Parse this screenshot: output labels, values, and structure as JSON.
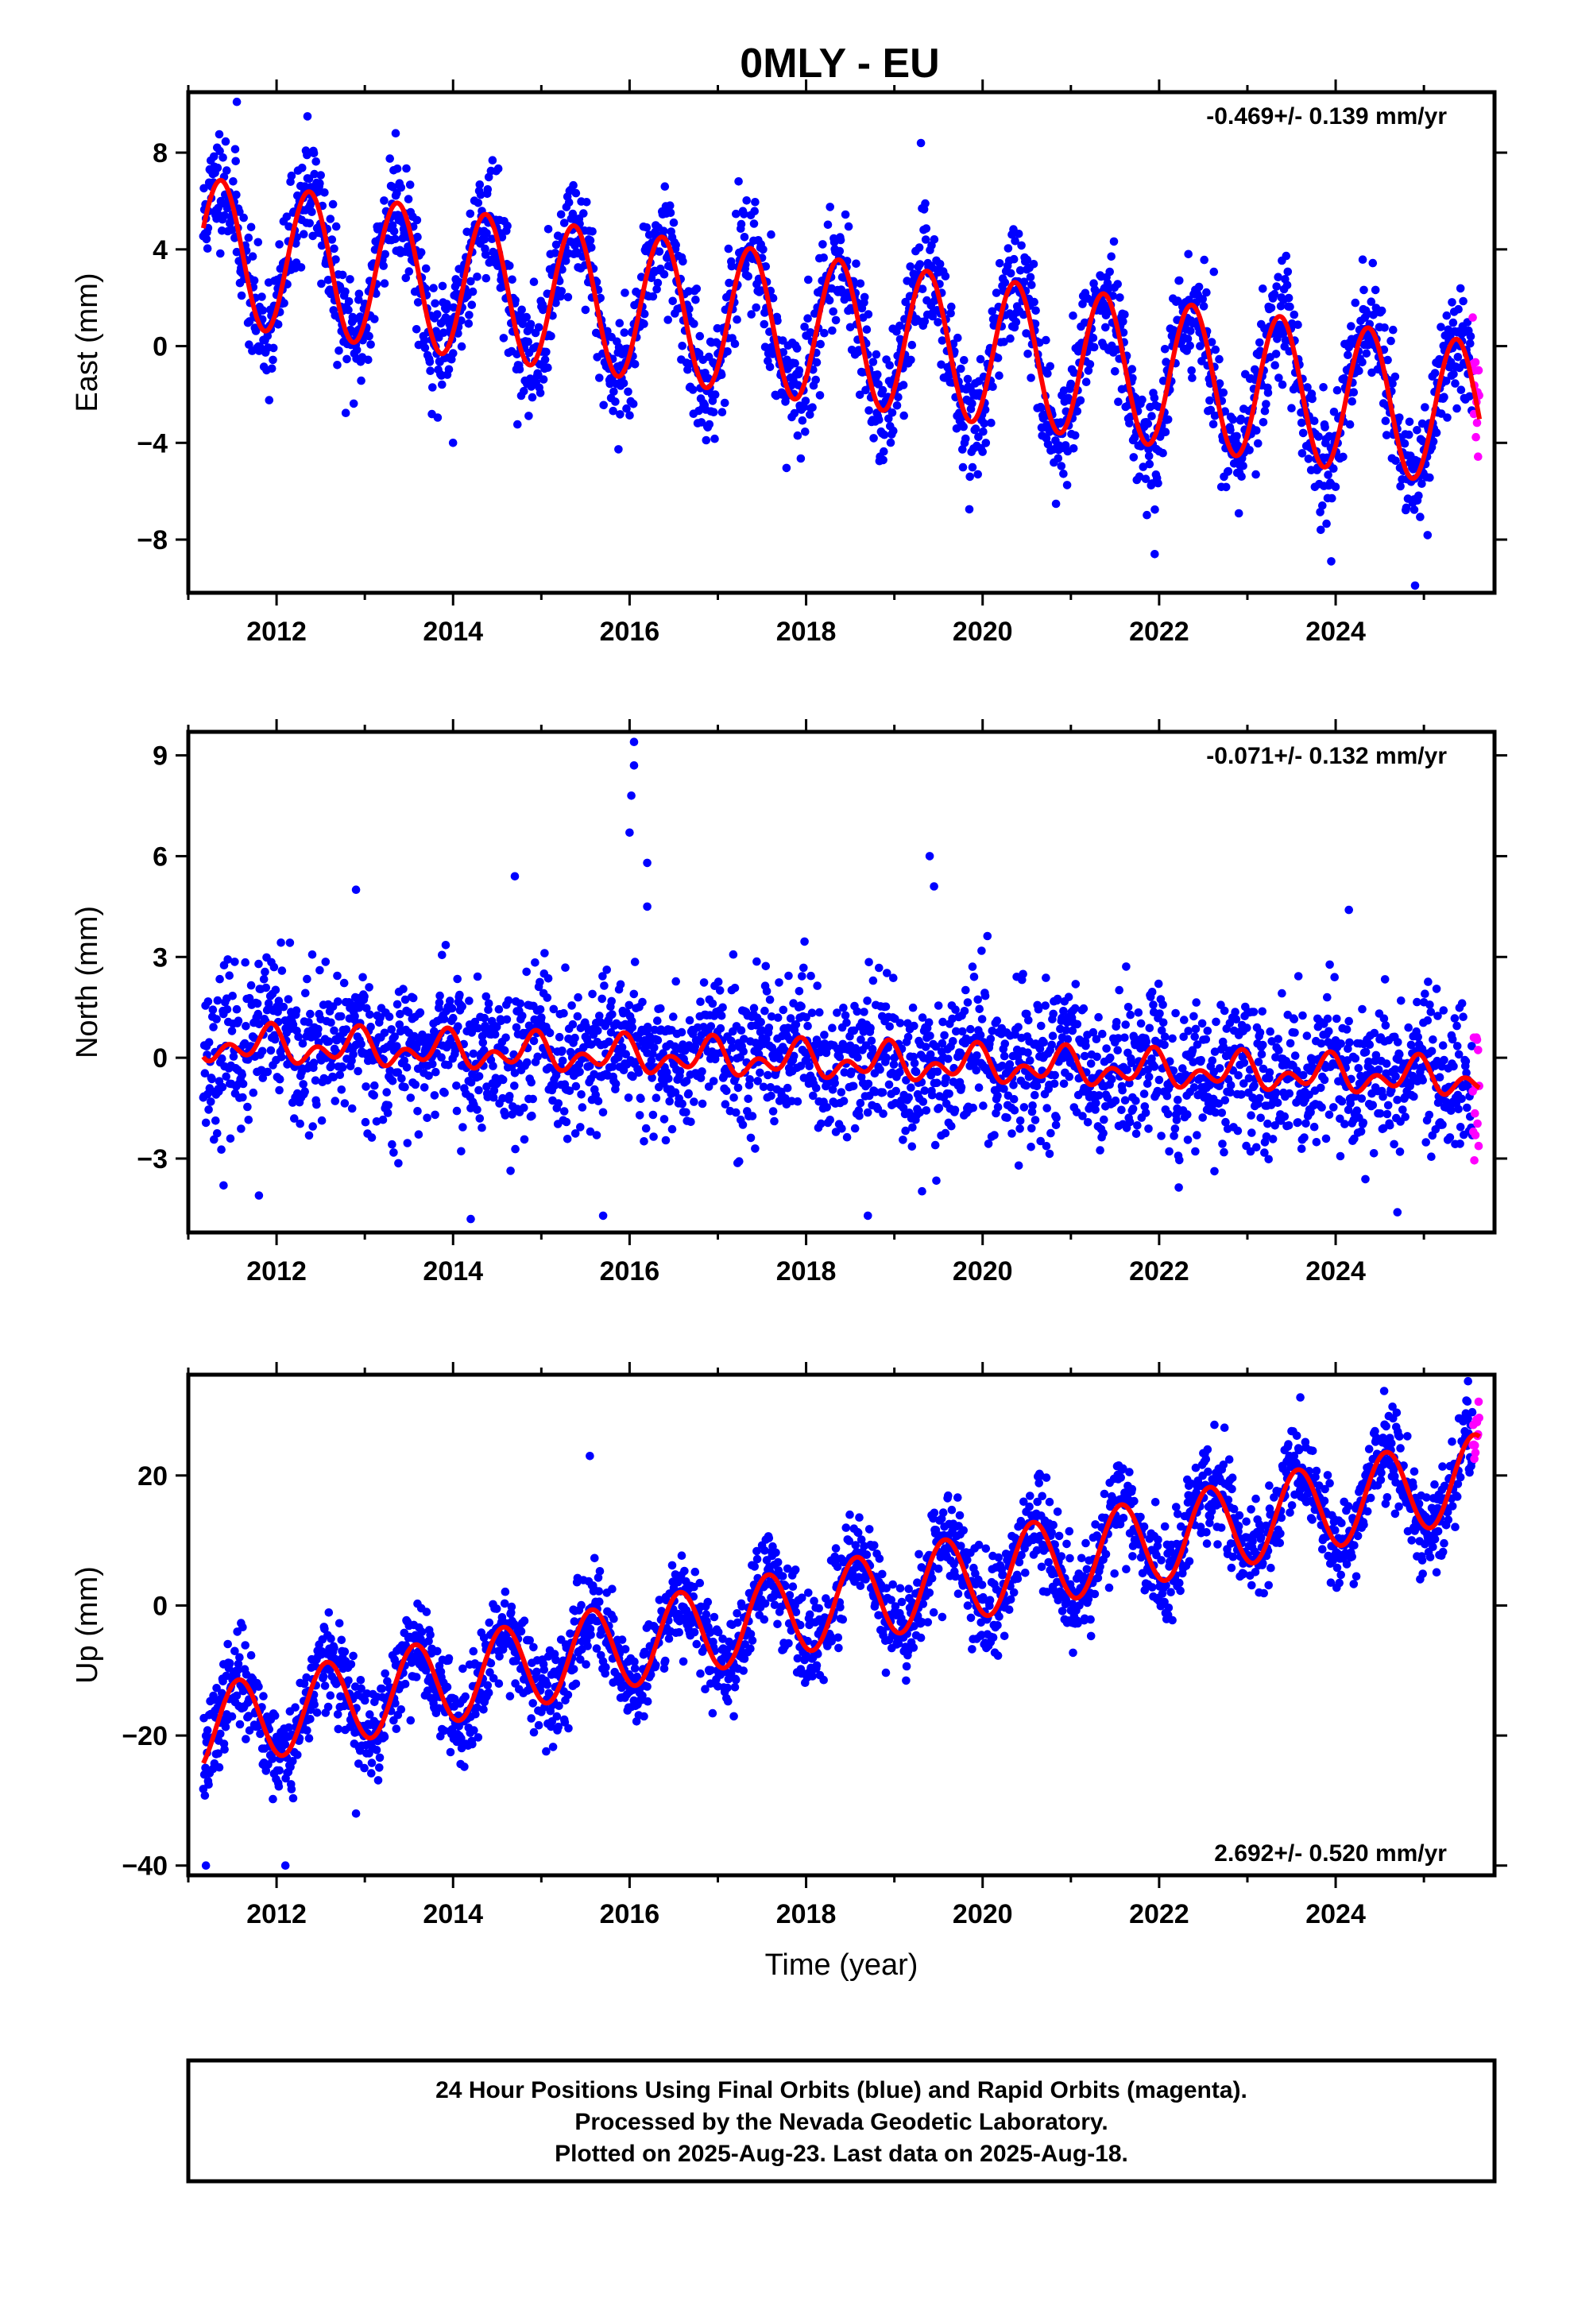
{
  "title": "0MLY - EU",
  "colors": {
    "final": "#0000ff",
    "rapid": "#ff00ff",
    "model": "#ff0000",
    "frame": "#000000"
  },
  "chart_data": [
    {
      "type": "scatter",
      "ylabel": "East (mm)",
      "rate_text": "-0.469+/- 0.139 mm/yr",
      "rate_position": "top-right",
      "xlim": [
        2011.0,
        2025.8
      ],
      "ylim": [
        -10.2,
        10.5
      ],
      "xticks": [
        2012,
        2014,
        2016,
        2018,
        2020,
        2022,
        2024
      ],
      "xtick_labels": [
        "2012",
        "2014",
        "2016",
        "2018",
        "2020",
        "2022",
        "2024"
      ],
      "yticks": [
        -8,
        -4,
        0,
        4,
        8
      ],
      "ytick_labels": [
        "−8",
        "−4",
        "0",
        "4",
        "8"
      ],
      "grid": false,
      "data_start": 2011.17,
      "data_end": 2025.63,
      "rapid_start": 2025.55,
      "model": {
        "offset": 3.95,
        "trend": -0.469,
        "ref_year": 2011.17,
        "annual_amp": 3.0,
        "annual_peak": 0.37,
        "semi_amp": 0.0,
        "semi_peak": 0.0
      },
      "scatter": {
        "noise": 1.2,
        "seed": 11
      },
      "outliers": [
        [
          2011.55,
          10.1
        ],
        [
          2012.35,
          9.5
        ],
        [
          2013.35,
          8.8
        ],
        [
          2016.4,
          6.6
        ],
        [
          2021.95,
          -8.6
        ],
        [
          2023.95,
          -8.9
        ],
        [
          2024.9,
          -9.9
        ],
        [
          2014.0,
          -4.0
        ]
      ]
    },
    {
      "type": "scatter",
      "ylabel": "North (mm)",
      "rate_text": "-0.071+/- 0.132 mm/yr",
      "rate_position": "top-right",
      "xlim": [
        2011.0,
        2025.8
      ],
      "ylim": [
        -5.2,
        9.7
      ],
      "xticks": [
        2012,
        2014,
        2016,
        2018,
        2020,
        2022,
        2024
      ],
      "xtick_labels": [
        "2012",
        "2014",
        "2016",
        "2018",
        "2020",
        "2022",
        "2024"
      ],
      "yticks": [
        -3,
        0,
        3,
        6,
        9
      ],
      "ytick_labels": [
        "−3",
        "0",
        "3",
        "6",
        "9"
      ],
      "grid": false,
      "data_start": 2011.17,
      "data_end": 2025.63,
      "rapid_start": 2025.55,
      "model": {
        "offset": 0.4,
        "trend": -0.071,
        "ref_year": 2011.17,
        "annual_amp": 0.35,
        "annual_peak": 0.9,
        "semi_amp": 0.35,
        "semi_peak": 0.45
      },
      "scatter": {
        "noise": 1.1,
        "seed": 23
      },
      "outliers": [
        [
          2016.05,
          9.4
        ],
        [
          2016.05,
          8.7
        ],
        [
          2016.02,
          7.8
        ],
        [
          2016.0,
          6.7
        ],
        [
          2016.2,
          5.8
        ],
        [
          2016.2,
          4.5
        ],
        [
          2019.4,
          6.0
        ],
        [
          2019.45,
          5.1
        ],
        [
          2014.7,
          5.4
        ],
        [
          2012.9,
          5.0
        ],
        [
          2024.15,
          4.4
        ],
        [
          2014.2,
          -4.8
        ],
        [
          2015.7,
          -4.7
        ],
        [
          2018.7,
          -4.7
        ],
        [
          2024.7,
          -4.6
        ],
        [
          2011.4,
          -3.8
        ],
        [
          2011.8,
          -4.1
        ]
      ]
    },
    {
      "type": "scatter",
      "ylabel": "Up (mm)",
      "rate_text": "2.692+/- 0.520 mm/yr",
      "rate_position": "bottom-right",
      "xlabel": "Time (year)",
      "xlim": [
        2011.0,
        2025.8
      ],
      "ylim": [
        -41.5,
        35.5
      ],
      "xticks": [
        2012,
        2014,
        2016,
        2018,
        2020,
        2022,
        2024
      ],
      "xtick_labels": [
        "2012",
        "2014",
        "2016",
        "2018",
        "2020",
        "2022",
        "2024"
      ],
      "yticks": [
        -40,
        -20,
        0,
        20
      ],
      "ytick_labels": [
        "−40",
        "−20",
        "0",
        "20"
      ],
      "grid": false,
      "data_start": 2011.17,
      "data_end": 2025.63,
      "rapid_start": 2025.55,
      "model": {
        "offset": -19.0,
        "trend": 2.692,
        "ref_year": 2011.17,
        "annual_amp": 6.5,
        "annual_peak": 0.57,
        "semi_amp": 0.0,
        "semi_peak": 0.0
      },
      "scatter": {
        "noise": 3.6,
        "seed": 37
      },
      "outliers": [
        [
          2011.2,
          -40.0
        ],
        [
          2012.1,
          -40.0
        ],
        [
          2015.55,
          23.0
        ],
        [
          2024.55,
          33.0
        ],
        [
          2025.5,
          34.5
        ],
        [
          2023.6,
          32.0
        ],
        [
          2012.9,
          -32.0
        ]
      ]
    }
  ],
  "footer": {
    "line1": "24 Hour Positions Using Final Orbits (blue) and Rapid Orbits (magenta).",
    "line2": "Processed by the Nevada Geodetic Laboratory.",
    "line3": "Plotted on 2025-Aug-23. Last data on 2025-Aug-18."
  }
}
